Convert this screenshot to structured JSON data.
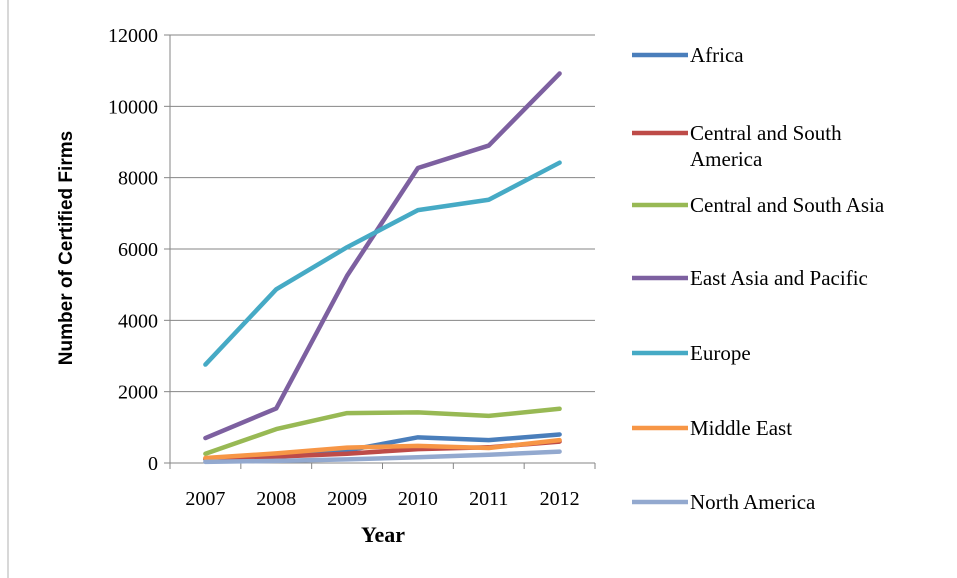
{
  "chart_data": {
    "type": "line",
    "title": "",
    "xlabel": "Year",
    "ylabel": "Number of Certified Firms",
    "categories": [
      "2007",
      "2008",
      "2009",
      "2010",
      "2011",
      "2012"
    ],
    "ylim": [
      0,
      12000
    ],
    "yticks": [
      "0",
      "2000",
      "4000",
      "6000",
      "8000",
      "10000",
      "12000"
    ],
    "grid": true,
    "legend_position": "right",
    "series": [
      {
        "name": "Africa",
        "color": "#4a7ebb",
        "values": [
          100,
          200,
          350,
          720,
          640,
          800
        ],
        "legend_lines": [
          "Africa"
        ]
      },
      {
        "name": "Central and South America",
        "color": "#be4b48",
        "values": [
          120,
          180,
          260,
          390,
          440,
          600
        ],
        "legend_lines": [
          "Central and South",
          "America"
        ]
      },
      {
        "name": "Central and South Asia",
        "color": "#98b954",
        "values": [
          260,
          950,
          1400,
          1420,
          1320,
          1520
        ],
        "legend_lines": [
          "Central and South Asia"
        ]
      },
      {
        "name": "East Asia and Pacific",
        "color": "#7d60a0",
        "values": [
          700,
          1530,
          5250,
          8270,
          8900,
          10920
        ],
        "legend_lines": [
          "East Asia and Pacific"
        ]
      },
      {
        "name": "Europe",
        "color": "#46aac5",
        "values": [
          2760,
          4870,
          6050,
          7090,
          7380,
          8420
        ],
        "legend_lines": [
          "Europe"
        ]
      },
      {
        "name": "Middle East",
        "color": "#f79646",
        "values": [
          140,
          270,
          430,
          480,
          420,
          640
        ],
        "legend_lines": [
          "Middle East"
        ]
      },
      {
        "name": "North America",
        "color": "#93a9cf",
        "values": [
          30,
          60,
          100,
          160,
          230,
          320
        ],
        "legend_lines": [
          "North America"
        ]
      }
    ]
  }
}
